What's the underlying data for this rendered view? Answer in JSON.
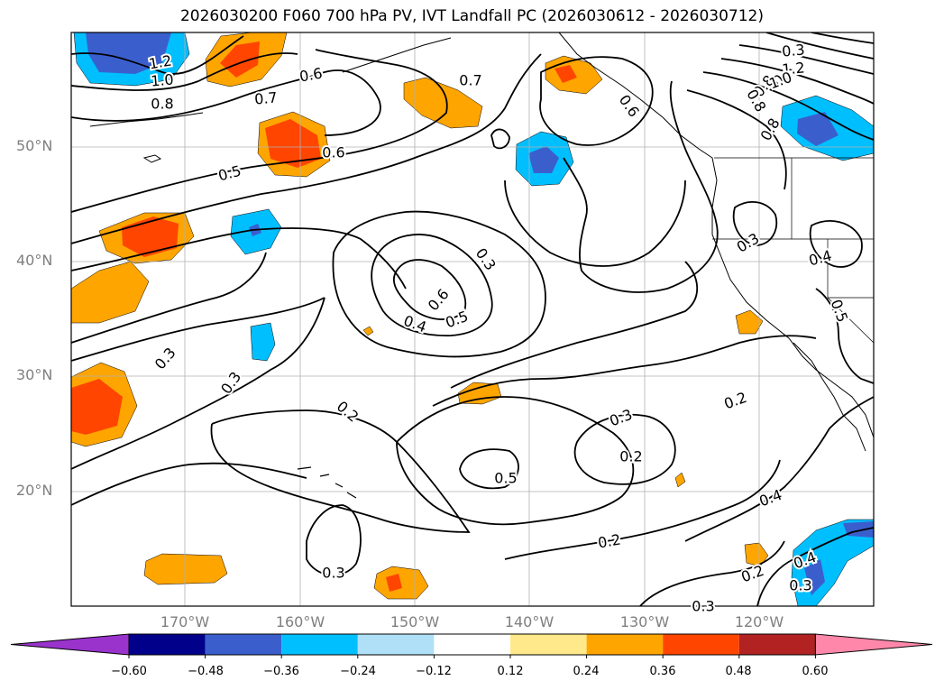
{
  "title": "2026030200 F060 700 hPa PV, IVT Landfall PC (2026030612 - 2026030712)",
  "map": {
    "lat_labels": [
      "50°N",
      "40°N",
      "30°N",
      "20°N"
    ],
    "lon_labels": [
      "170°W",
      "160°W",
      "150°W",
      "140°W",
      "130°W",
      "120°W"
    ],
    "contour_labels": [
      "1.2",
      "1.0",
      "0.8",
      "0.6",
      "0.7",
      "0.7",
      "0.6",
      "0.5",
      "0.6",
      "0.8",
      "0.6",
      "0.8",
      "0.3",
      "1.2",
      "1.0",
      "0.8",
      "0.3",
      "0.3",
      "0.6",
      "0.5",
      "0.4",
      "0.3",
      "0.3",
      "0.2",
      "0.3",
      "0.2",
      "0.5",
      "0.2",
      "0.4",
      "0.2",
      "0.4",
      "0.5",
      "0.4",
      "0.3",
      "0.2",
      "0.3",
      "0.3"
    ],
    "fill_colors": {
      "neg_060": "#9933cc",
      "neg_048": "#00008b",
      "neg_036": "#3a5fcd",
      "neg_024": "#00bfff",
      "neg_012": "#b0e0f8",
      "zero": "#ffffff",
      "pos_012": "#ffe98a",
      "pos_024": "#ffa500",
      "pos_036": "#ff4500",
      "pos_048": "#b22222",
      "pos_060": "#ff88aa"
    }
  },
  "colorbar": {
    "ticks": [
      "−0.60",
      "−0.48",
      "−0.36",
      "−0.24",
      "−0.12",
      "0.12",
      "0.24",
      "0.36",
      "0.48",
      "0.60"
    ],
    "colors": [
      "#9933cc",
      "#00008b",
      "#3a5fcd",
      "#00bfff",
      "#b0e0f8",
      "#ffffff",
      "#ffe98a",
      "#ffa500",
      "#ff4500",
      "#b22222",
      "#ff88aa"
    ]
  }
}
